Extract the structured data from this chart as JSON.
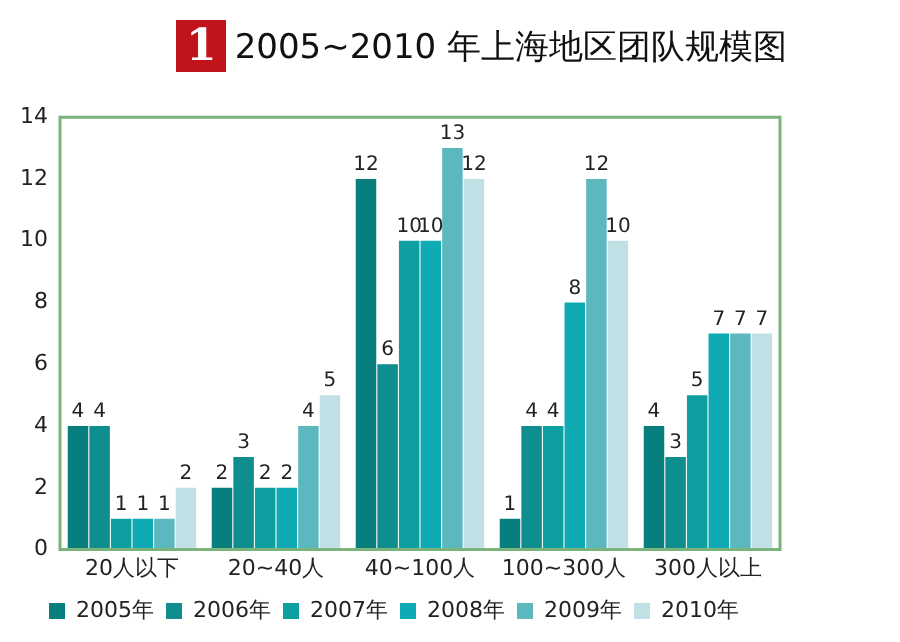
{
  "chart_data": {
    "type": "bar",
    "title": "2005~2010 年上海地区团队规模图",
    "annotations": [
      "1"
    ],
    "categories": [
      "20人以下",
      "20~40人",
      "40~100人",
      "100~300人",
      "300人以上"
    ],
    "series": [
      {
        "name": "2005年",
        "color": "#087f7f",
        "values": [
          4,
          2,
          12,
          1,
          4
        ]
      },
      {
        "name": "2006年",
        "color": "#0e8e8e",
        "values": [
          4,
          3,
          6,
          4,
          3
        ]
      },
      {
        "name": "2007年",
        "color": "#0ea0a0",
        "values": [
          1,
          2,
          10,
          4,
          5
        ]
      },
      {
        "name": "2008年",
        "color": "#10aab4",
        "values": [
          1,
          2,
          10,
          8,
          7
        ]
      },
      {
        "name": "2009年",
        "color": "#5cb8bf",
        "values": [
          1,
          4,
          13,
          12,
          7
        ]
      },
      {
        "name": "2010年",
        "color": "#c0e0e6",
        "values": [
          2,
          5,
          12,
          10,
          7
        ]
      }
    ],
    "ylim": [
      0,
      14
    ],
    "yticks": [
      0,
      2,
      4,
      6,
      8,
      10,
      12,
      14
    ],
    "grid": false,
    "legend": "bottom",
    "data_labels": true
  }
}
